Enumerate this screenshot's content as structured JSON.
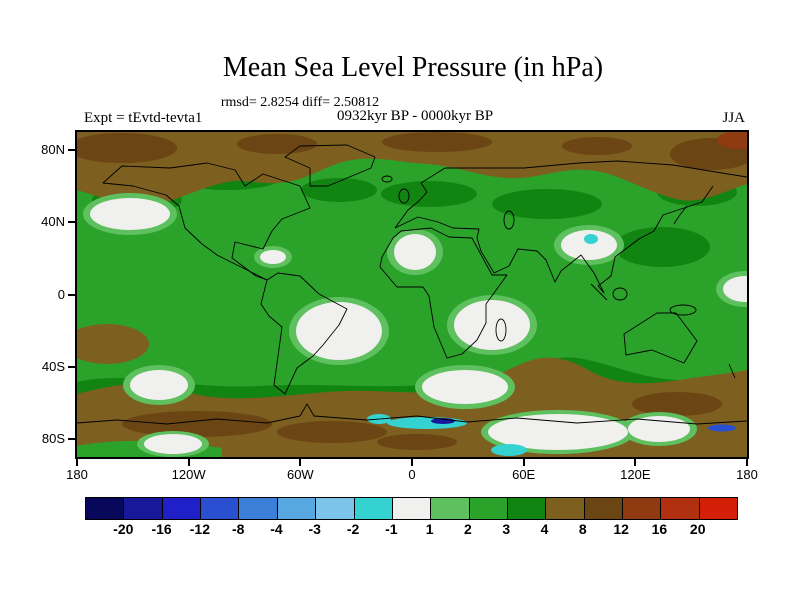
{
  "title": "Mean Sea Level Pressure (in hPa)",
  "stats": "rmsd= 2.8254 diff= 2.50812",
  "header": {
    "experiment": "Expt = tEvtd-tevta1",
    "period": "0932kyr BP - 0000kyr BP",
    "season": "JJA"
  },
  "axes": {
    "y_ticks": [
      "80N",
      "40N",
      "0",
      "40S",
      "80S"
    ],
    "x_ticks": [
      "180",
      "120W",
      "60W",
      "0",
      "60E",
      "120E",
      "180"
    ]
  },
  "colorbar": {
    "labels": [
      "-20",
      "-16",
      "-12",
      "-8",
      "-4",
      "-3",
      "-2",
      "-1",
      "1",
      "2",
      "3",
      "4",
      "8",
      "12",
      "16",
      "20"
    ],
    "colors": [
      "#08085a",
      "#18189b",
      "#2020c8",
      "#2a4fd0",
      "#3c7fd8",
      "#57a8e0",
      "#7cc4ea",
      "#35d2d2",
      "#f0f0ee",
      "#5fc05f",
      "#2ba32b",
      "#128412",
      "#7d5f1f",
      "#6b4513",
      "#8f3a10",
      "#b03010",
      "#d41f07"
    ]
  },
  "chart_data": {
    "type": "heatmap",
    "subtype": "filled-contour global lat-lon map",
    "title": "Mean Sea Level Pressure (in hPa)",
    "annotation": "rmsd= 2.8254 diff= 2.50812",
    "experiment": "Expt = tEvtd-tevta1",
    "difference_field": "0932kyr BP - 0000kyr BP",
    "season": "JJA",
    "units": "hPa",
    "x": {
      "label": "longitude",
      "tick_labels": [
        "180",
        "120W",
        "60W",
        "0",
        "60E",
        "120E",
        "180"
      ],
      "range_deg": [
        -180,
        180
      ]
    },
    "y": {
      "label": "latitude",
      "tick_labels": [
        "80N",
        "40N",
        "0",
        "40S",
        "80S"
      ],
      "range_deg": [
        -90,
        90
      ]
    },
    "contour_levels": [
      -20,
      -16,
      -12,
      -8,
      -4,
      -3,
      -2,
      -1,
      1,
      2,
      3,
      4,
      8,
      12,
      16,
      20
    ],
    "palette_hex": [
      "#08085a",
      "#18189b",
      "#2020c8",
      "#2a4fd0",
      "#3c7fd8",
      "#57a8e0",
      "#7cc4ea",
      "#35d2d2",
      "#f0f0ee",
      "#5fc05f",
      "#2ba32b",
      "#128412",
      "#7d5f1f",
      "#6b4513",
      "#8f3a10",
      "#b03010",
      "#d41f07"
    ],
    "legend_position": "bottom horizontal colorbar",
    "field_summary": [
      {
        "value_hpa": "2 to 3 (green)",
        "region": "dominant over most tropical and mid-latitude oceans and continents"
      },
      {
        "value_hpa": "3 to 4 (dark green)",
        "region": "patches over Canada, North Atlantic, Europe, central and east Asia, southern mid-latitude band"
      },
      {
        "value_hpa": "4 to 12 (browns)",
        "region": "Arctic / high northern latitudes band and Southern Ocean / Antarctic band"
      },
      {
        "value_hpa": "-1 to 1 (white)",
        "region": "North Pacific, subtropical South Atlantic / South America, southern Africa - SW Indian Ocean, Sahara / NW Africa, Tibetan Plateau, southern ocean patches, Antarctic patches"
      },
      {
        "value_hpa": "-3 to -1 (cyan)",
        "region": "small patches along Antarctic coast and near Tibetan Plateau"
      },
      {
        "value_hpa": "-12 to -8 (blue)",
        "region": "tiny streaks at the Antarctic coastline"
      }
    ]
  }
}
